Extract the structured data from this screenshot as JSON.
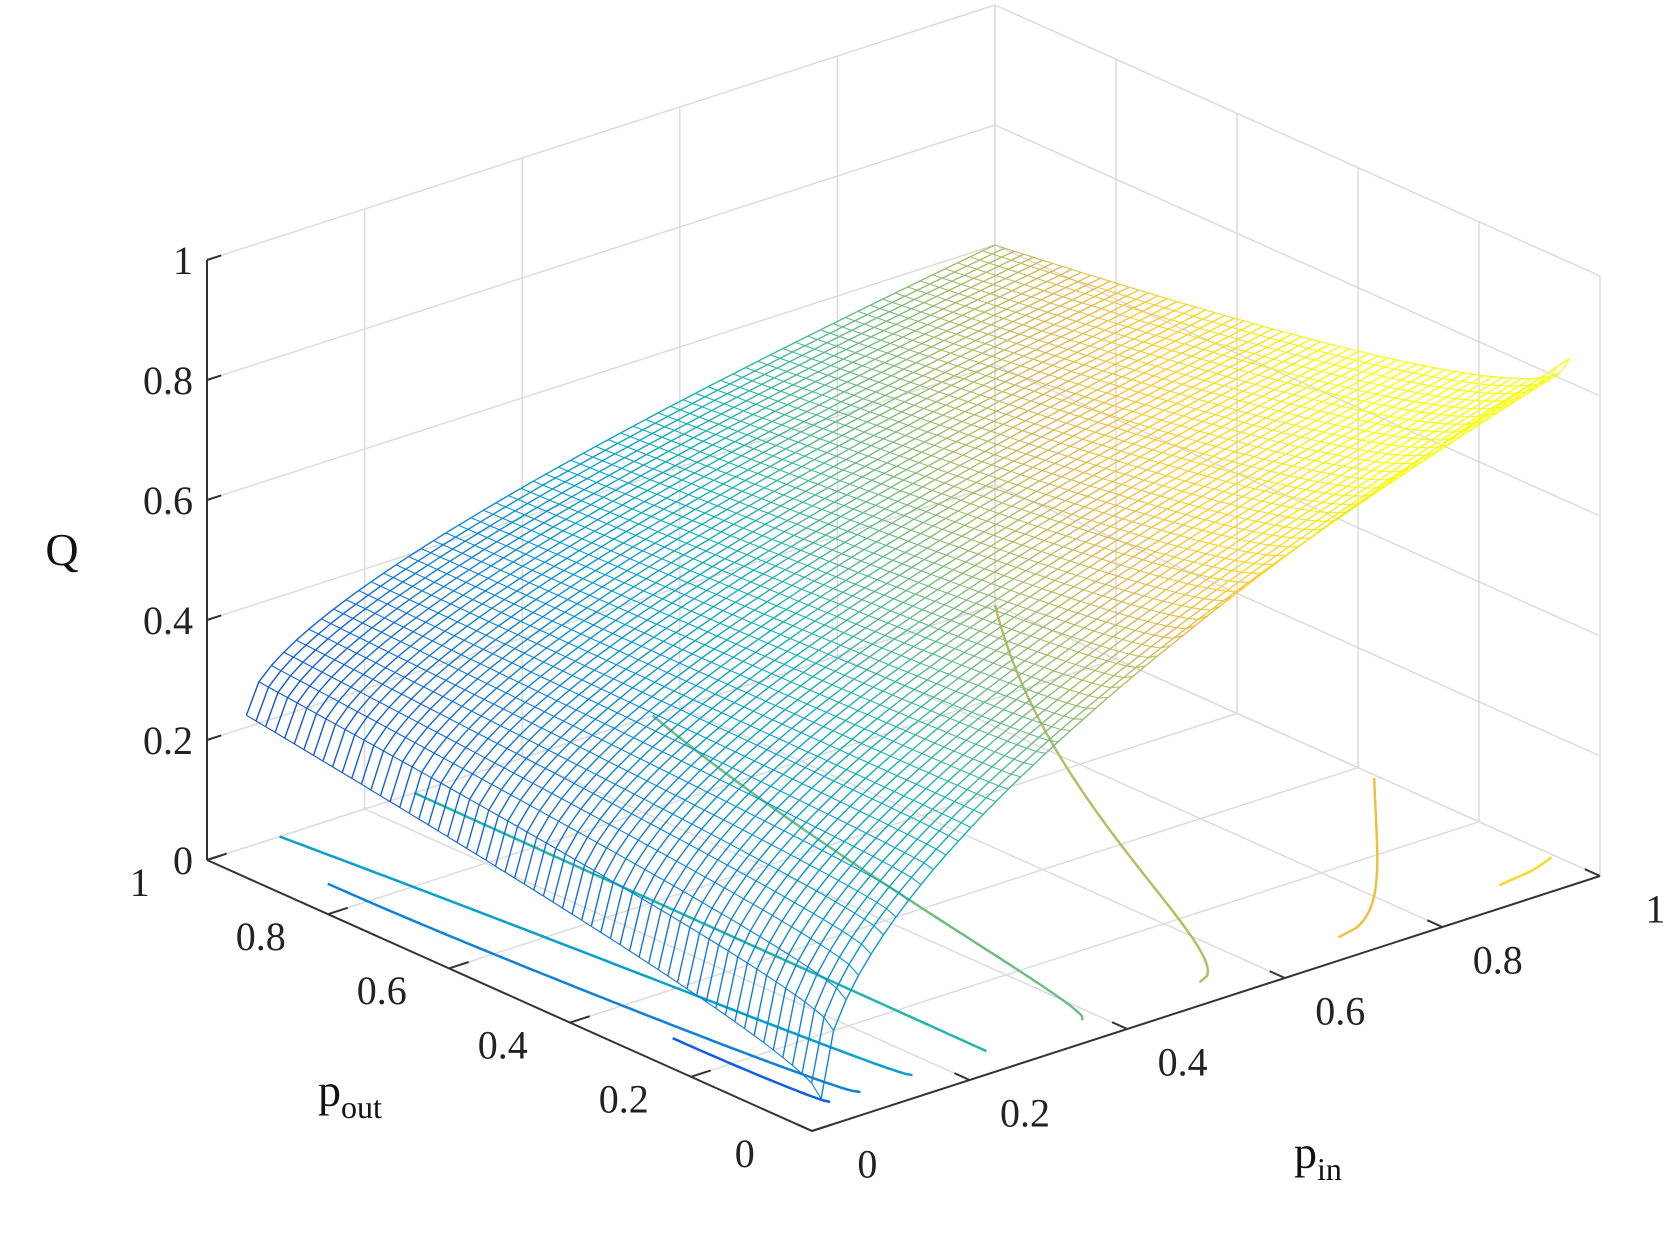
{
  "chart_data": {
    "type": "surface",
    "zlabel": "Q",
    "xlabel": {
      "main": "p",
      "sub": "in"
    },
    "ylabel": {
      "main": "p",
      "sub": "out"
    },
    "xlim": [
      0,
      1
    ],
    "ylim": [
      0,
      1
    ],
    "zlim": [
      0,
      1
    ],
    "x_ticks": [
      "0",
      "0.2",
      "0.4",
      "0.6",
      "0.8",
      "1"
    ],
    "y_ticks": [
      "0",
      "0.2",
      "0.4",
      "0.6",
      "0.8",
      "1"
    ],
    "z_ticks": [
      "0",
      "0.2",
      "0.4",
      "0.6",
      "0.8",
      "1"
    ],
    "grid": true,
    "colormap": "parula",
    "surface": {
      "p_in_range": [
        0.05,
        1.0
      ],
      "p_out_range": [
        0.05,
        1.0
      ],
      "corner_values": {
        "p_in_0.05_p_out_0.05": 0.01,
        "p_in_0.05_p_out_1": 0.22,
        "p_in_1_p_out_1": 0.6,
        "p_in_1_p_out_0.05": 0.84
      }
    },
    "contour_levels": [
      0.1,
      0.2,
      0.3,
      0.4,
      0.5,
      0.6,
      0.7,
      0.8,
      0.9
    ]
  }
}
